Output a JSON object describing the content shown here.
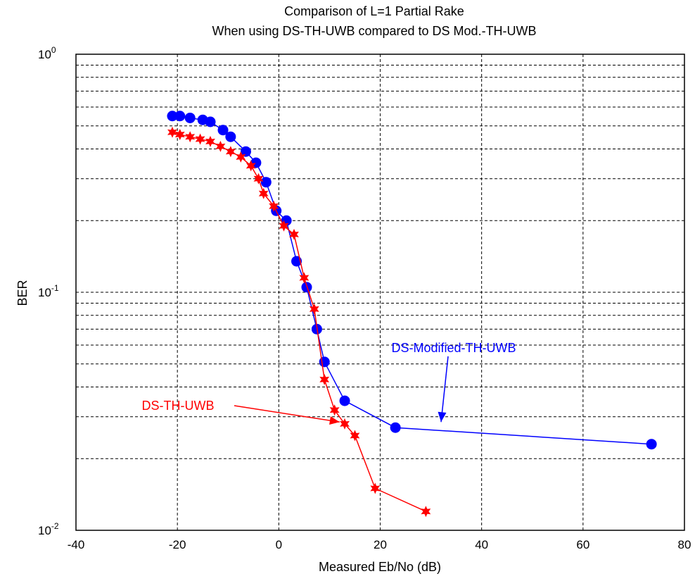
{
  "chart_data": {
    "type": "line",
    "title": [
      "Comparison of L=1 Partial Rake",
      "When using DS-TH-UWB compared to DS Mod.-TH-UWB"
    ],
    "xlabel": "Measured Eb/No (dB)",
    "ylabel": "BER",
    "xlim": [
      -40,
      80
    ],
    "ylim": [
      0.01,
      1
    ],
    "yscale": "log",
    "grid": true,
    "x_ticks": [
      "-40",
      "-20",
      "0",
      "20",
      "40",
      "60",
      "80"
    ],
    "y_ticks": [
      {
        "base": "10",
        "exp": "-2"
      },
      {
        "base": "10",
        "exp": "-1"
      },
      {
        "base": "10",
        "exp": "0"
      }
    ],
    "series": [
      {
        "name": "DS-Modified-TH-UWB",
        "color": "#0000ff",
        "marker": "circle",
        "x": [
          -21,
          -19.5,
          -17.5,
          -15,
          -13.5,
          -11,
          -9.5,
          -6.5,
          -4.5,
          -2.5,
          -0.5,
          1.5,
          3.5,
          5.5,
          7.5,
          9,
          13,
          23,
          73.5
        ],
        "y": [
          0.55,
          0.55,
          0.54,
          0.53,
          0.52,
          0.48,
          0.45,
          0.39,
          0.35,
          0.29,
          0.22,
          0.2,
          0.135,
          0.105,
          0.07,
          0.051,
          0.035,
          0.027,
          0.023
        ]
      },
      {
        "name": "DS-TH-UWB",
        "color": "#ff0000",
        "marker": "star",
        "x": [
          -21,
          -19.5,
          -17.5,
          -15.5,
          -13.5,
          -11.5,
          -9.5,
          -7.5,
          -5.5,
          -4,
          -3,
          -1,
          1,
          3,
          5,
          7,
          9,
          11,
          13,
          15,
          19,
          29
        ],
        "y": [
          0.47,
          0.46,
          0.45,
          0.44,
          0.43,
          0.41,
          0.39,
          0.37,
          0.34,
          0.3,
          0.26,
          0.23,
          0.19,
          0.175,
          0.115,
          0.085,
          0.043,
          0.032,
          0.028,
          0.025,
          0.015,
          0.012
        ]
      }
    ],
    "annotations": [
      {
        "text": "DS-Modified-TH-UWB",
        "color": "#0000ff",
        "arrow_to": [
          32,
          0.0285
        ]
      },
      {
        "text": "DS-TH-UWB",
        "color": "#ff0000",
        "arrow_to": [
          12,
          0.0285
        ]
      }
    ]
  }
}
